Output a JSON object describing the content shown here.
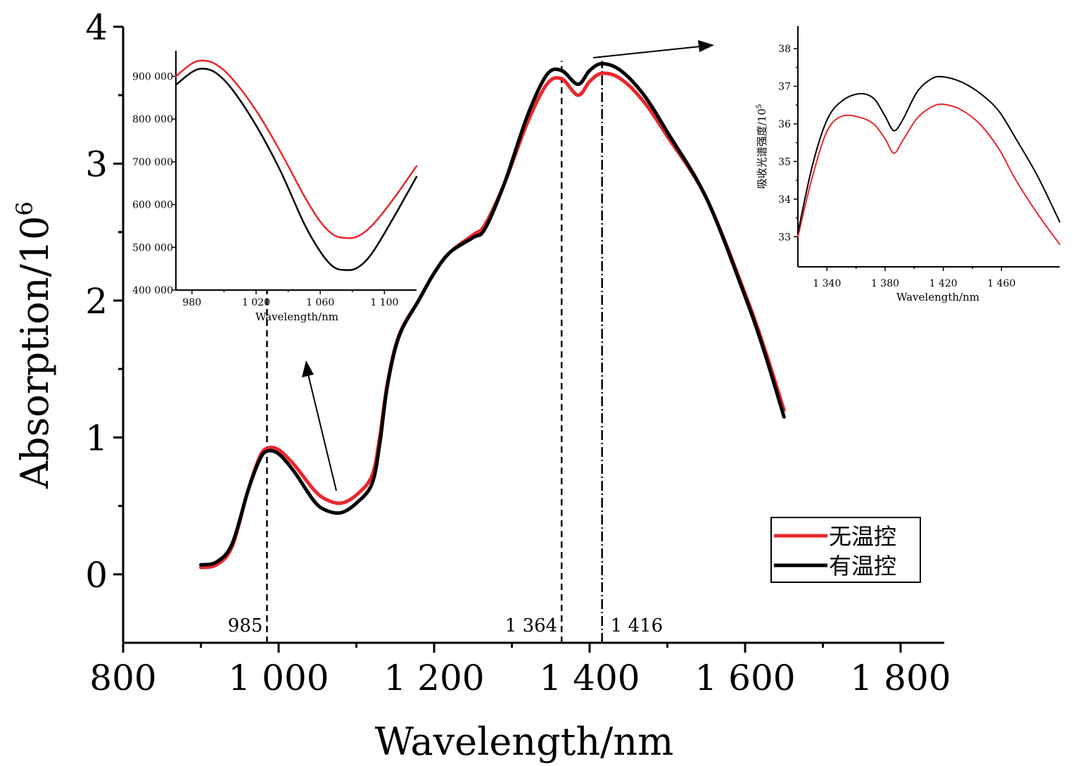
{
  "colors": {
    "no_temp_control": "#e8282d",
    "with_temp_control": "#000000"
  },
  "chart_data": [
    {
      "id": "main",
      "type": "line",
      "xlabel": "Wavelength/nm",
      "ylabel": "Absorption/10",
      "ylabel_sup": "6",
      "xlim": [
        800,
        1850
      ],
      "ylim": [
        -0.5,
        4
      ],
      "xticks": [
        800,
        1000,
        1200,
        1400,
        1600,
        1800
      ],
      "xtick_labels": [
        "800",
        "1 000",
        "1 200",
        "1 400",
        "1 600",
        "1 800"
      ],
      "yticks": [
        0,
        1,
        2,
        3,
        4
      ],
      "ytick_labels": [
        "0",
        "1",
        "2",
        "3",
        "4"
      ],
      "legend_position": "bottom-right",
      "annotations": [
        {
          "x": 985,
          "label": "985",
          "style": "dashed"
        },
        {
          "x": 1364,
          "label": "1 364",
          "style": "dashed"
        },
        {
          "x": 1416,
          "label": "1 416",
          "style": "dash-dot"
        }
      ],
      "series": [
        {
          "name": "无温控",
          "color": "#e8282d",
          "points": [
            [
              900,
              0.05
            ],
            [
              920,
              0.07
            ],
            [
              940,
              0.2
            ],
            [
              960,
              0.6
            ],
            [
              975,
              0.85
            ],
            [
              985,
              0.92
            ],
            [
              1000,
              0.91
            ],
            [
              1020,
              0.8
            ],
            [
              1045,
              0.62
            ],
            [
              1060,
              0.55
            ],
            [
              1080,
              0.52
            ],
            [
              1100,
              0.58
            ],
            [
              1120,
              0.72
            ],
            [
              1130,
              1.0
            ],
            [
              1140,
              1.4
            ],
            [
              1155,
              1.75
            ],
            [
              1180,
              2.0
            ],
            [
              1200,
              2.2
            ],
            [
              1220,
              2.35
            ],
            [
              1250,
              2.48
            ],
            [
              1265,
              2.55
            ],
            [
              1290,
              2.85
            ],
            [
              1320,
              3.3
            ],
            [
              1345,
              3.58
            ],
            [
              1364,
              3.62
            ],
            [
              1385,
              3.5
            ],
            [
              1400,
              3.6
            ],
            [
              1416,
              3.66
            ],
            [
              1440,
              3.62
            ],
            [
              1470,
              3.45
            ],
            [
              1500,
              3.2
            ],
            [
              1550,
              2.75
            ],
            [
              1600,
              2.05
            ],
            [
              1625,
              1.65
            ],
            [
              1650,
              1.2
            ]
          ]
        },
        {
          "name": "有温控",
          "color": "#000000",
          "points": [
            [
              900,
              0.07
            ],
            [
              920,
              0.09
            ],
            [
              940,
              0.22
            ],
            [
              960,
              0.6
            ],
            [
              975,
              0.83
            ],
            [
              985,
              0.9
            ],
            [
              1000,
              0.88
            ],
            [
              1020,
              0.75
            ],
            [
              1045,
              0.54
            ],
            [
              1060,
              0.47
            ],
            [
              1080,
              0.45
            ],
            [
              1100,
              0.52
            ],
            [
              1120,
              0.66
            ],
            [
              1130,
              0.95
            ],
            [
              1140,
              1.38
            ],
            [
              1155,
              1.74
            ],
            [
              1180,
              2.0
            ],
            [
              1200,
              2.2
            ],
            [
              1220,
              2.35
            ],
            [
              1250,
              2.46
            ],
            [
              1265,
              2.52
            ],
            [
              1290,
              2.85
            ],
            [
              1320,
              3.35
            ],
            [
              1345,
              3.65
            ],
            [
              1364,
              3.68
            ],
            [
              1385,
              3.58
            ],
            [
              1400,
              3.68
            ],
            [
              1416,
              3.73
            ],
            [
              1440,
              3.68
            ],
            [
              1470,
              3.5
            ],
            [
              1500,
              3.23
            ],
            [
              1550,
              2.75
            ],
            [
              1600,
              2.03
            ],
            [
              1625,
              1.62
            ],
            [
              1650,
              1.15
            ]
          ]
        }
      ]
    },
    {
      "id": "inset-left",
      "type": "line",
      "xlabel": "Wavelength/nm",
      "ylabel": "",
      "xlim": [
        970,
        1120
      ],
      "ylim": [
        400000,
        960000
      ],
      "xticks": [
        980,
        1020,
        1060,
        1100
      ],
      "xtick_labels": [
        "980",
        "1 020",
        "1 060",
        "1 100"
      ],
      "yticks": [
        400000,
        500000,
        600000,
        700000,
        800000,
        900000
      ],
      "ytick_labels": [
        "400 000",
        "500 000",
        "600 000",
        "700 000",
        "800 000",
        "900 000"
      ],
      "series": [
        {
          "name": "无温控",
          "color": "#e8282d",
          "points": [
            [
              970,
              900000
            ],
            [
              980,
              930000
            ],
            [
              987,
              937000
            ],
            [
              995,
              928000
            ],
            [
              1005,
              895000
            ],
            [
              1020,
              820000
            ],
            [
              1035,
              725000
            ],
            [
              1050,
              620000
            ],
            [
              1060,
              560000
            ],
            [
              1068,
              530000
            ],
            [
              1075,
              522000
            ],
            [
              1083,
              525000
            ],
            [
              1092,
              550000
            ],
            [
              1105,
              610000
            ],
            [
              1120,
              690000
            ]
          ]
        },
        {
          "name": "有温控",
          "color": "#000000",
          "points": [
            [
              970,
              880000
            ],
            [
              980,
              910000
            ],
            [
              987,
              918000
            ],
            [
              995,
              908000
            ],
            [
              1005,
              870000
            ],
            [
              1020,
              785000
            ],
            [
              1035,
              680000
            ],
            [
              1050,
              555000
            ],
            [
              1060,
              490000
            ],
            [
              1068,
              455000
            ],
            [
              1075,
              447000
            ],
            [
              1083,
              452000
            ],
            [
              1092,
              485000
            ],
            [
              1105,
              565000
            ],
            [
              1120,
              665000
            ]
          ]
        }
      ]
    },
    {
      "id": "inset-right",
      "type": "line",
      "xlabel": "Wavelength/nm",
      "ylabel": "吸收光谱强度/10",
      "ylabel_sup": "5",
      "xlim": [
        1320,
        1500
      ],
      "ylim": [
        32.2,
        38.6
      ],
      "xticks": [
        1340,
        1380,
        1420,
        1460
      ],
      "xtick_labels": [
        "1 340",
        "1 380",
        "1 420",
        "1 460"
      ],
      "yticks": [
        33,
        34,
        35,
        36,
        37,
        38
      ],
      "ytick_labels": [
        "33",
        "34",
        "35",
        "36",
        "37",
        "38"
      ],
      "series": [
        {
          "name": "无温控",
          "color": "#e8282d",
          "points": [
            [
              1320,
              33.0
            ],
            [
              1330,
              34.6
            ],
            [
              1340,
              35.8
            ],
            [
              1350,
              36.2
            ],
            [
              1362,
              36.18
            ],
            [
              1372,
              36.0
            ],
            [
              1380,
              35.6
            ],
            [
              1386,
              35.22
            ],
            [
              1392,
              35.55
            ],
            [
              1402,
              36.15
            ],
            [
              1412,
              36.45
            ],
            [
              1420,
              36.52
            ],
            [
              1432,
              36.38
            ],
            [
              1445,
              36.0
            ],
            [
              1458,
              35.35
            ],
            [
              1470,
              34.5
            ],
            [
              1485,
              33.6
            ],
            [
              1500,
              32.8
            ]
          ]
        },
        {
          "name": "有温控",
          "color": "#000000",
          "points": [
            [
              1320,
              33.1
            ],
            [
              1330,
              34.9
            ],
            [
              1340,
              36.1
            ],
            [
              1350,
              36.6
            ],
            [
              1362,
              36.8
            ],
            [
              1372,
              36.68
            ],
            [
              1380,
              36.2
            ],
            [
              1386,
              35.82
            ],
            [
              1392,
              36.1
            ],
            [
              1402,
              36.85
            ],
            [
              1412,
              37.2
            ],
            [
              1420,
              37.25
            ],
            [
              1432,
              37.12
            ],
            [
              1445,
              36.82
            ],
            [
              1458,
              36.35
            ],
            [
              1470,
              35.6
            ],
            [
              1485,
              34.6
            ],
            [
              1500,
              33.4
            ]
          ]
        }
      ]
    }
  ]
}
